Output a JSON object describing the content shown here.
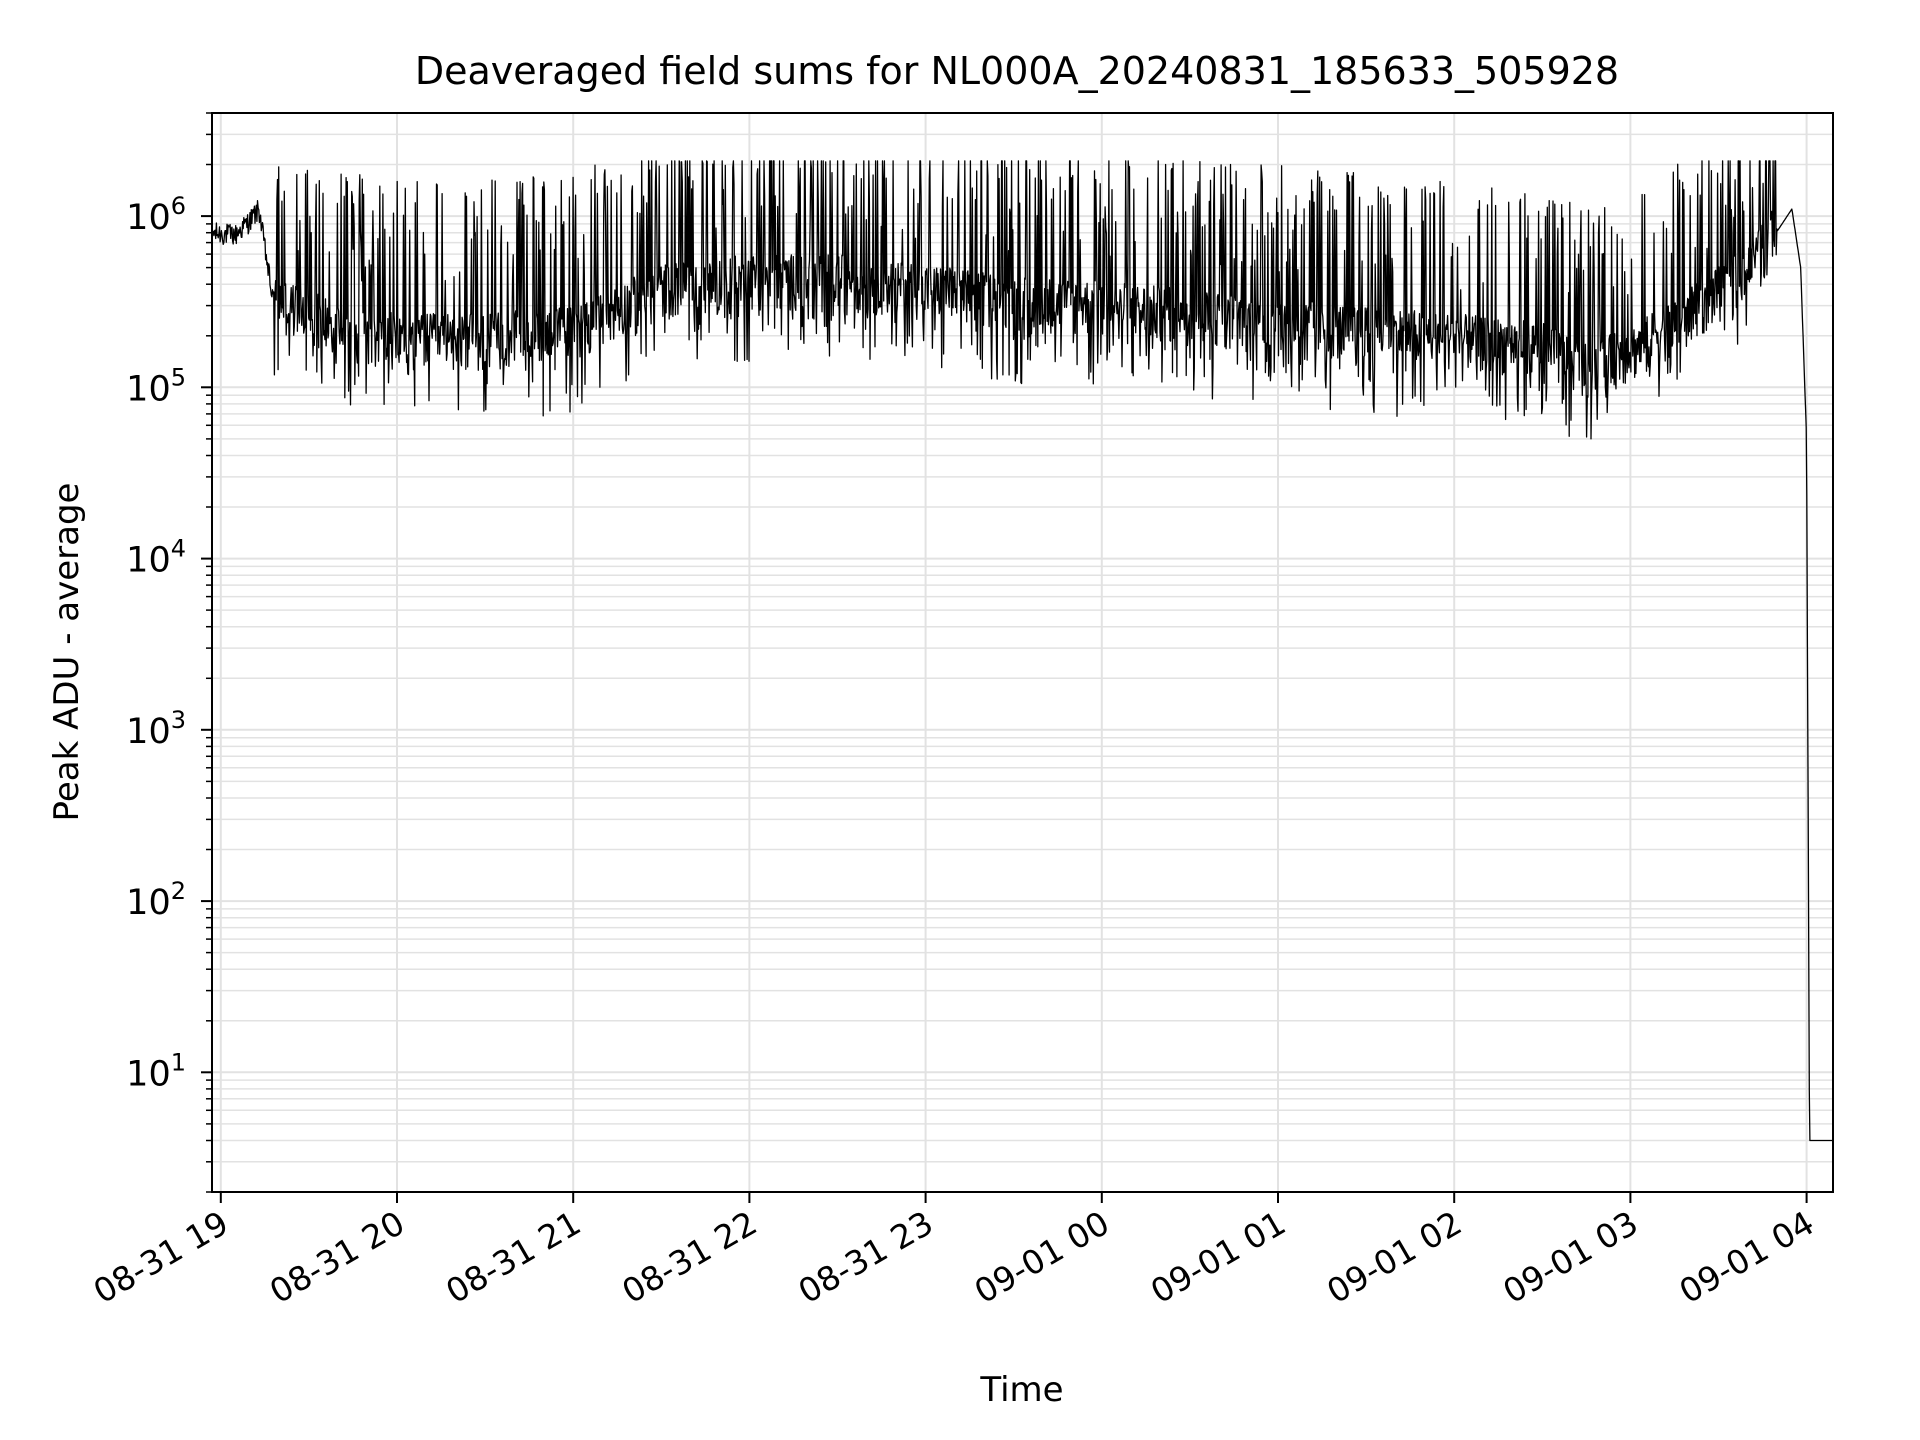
{
  "chart_data": {
    "type": "line",
    "title": "Deaveraged field sums for NL000A_20240831_185633_505928",
    "xlabel": "Time",
    "ylabel": "Peak ADU - average",
    "yscale": "log",
    "ylim": [
      2,
      4000000
    ],
    "xlim": [
      "2024-08-31 18:57",
      "2024-09-01 04:09"
    ],
    "grid": true,
    "x_ticks": [
      {
        "value": "2024-08-31 19:00",
        "label": "08-31 19"
      },
      {
        "value": "2024-08-31 20:00",
        "label": "08-31 20"
      },
      {
        "value": "2024-08-31 21:00",
        "label": "08-31 21"
      },
      {
        "value": "2024-08-31 22:00",
        "label": "08-31 22"
      },
      {
        "value": "2024-08-31 23:00",
        "label": "08-31 23"
      },
      {
        "value": "2024-09-01 00:00",
        "label": "09-01 00"
      },
      {
        "value": "2024-09-01 01:00",
        "label": "09-01 01"
      },
      {
        "value": "2024-09-01 02:00",
        "label": "09-01 02"
      },
      {
        "value": "2024-09-01 03:00",
        "label": "09-01 03"
      },
      {
        "value": "2024-09-01 04:00",
        "label": "09-01 04"
      }
    ],
    "y_ticks": [
      {
        "value": 10,
        "base": "10",
        "exp": "1"
      },
      {
        "value": 100,
        "base": "10",
        "exp": "2"
      },
      {
        "value": 1000,
        "base": "10",
        "exp": "3"
      },
      {
        "value": 10000,
        "base": "10",
        "exp": "4"
      },
      {
        "value": 100000,
        "base": "10",
        "exp": "5"
      },
      {
        "value": 1000000,
        "base": "10",
        "exp": "6"
      }
    ],
    "series": [
      {
        "color": "#000000",
        "description_points": [
          {
            "x": "2024-08-31 18:57",
            "y": 800000
          },
          {
            "x": "2024-08-31 19:05",
            "y": 780000
          },
          {
            "x": "2024-08-31 19:10",
            "y": 950000
          },
          {
            "x": "2024-08-31 19:13",
            "y": 1100000
          },
          {
            "x": "2024-08-31 19:18",
            "y": 300000
          },
          {
            "x": "2024-08-31 19:30",
            "y": 250000
          },
          {
            "x": "2024-08-31 19:45",
            "y": 200000
          },
          {
            "x": "2024-08-31 20:00",
            "y": 180000
          },
          {
            "x": "2024-08-31 20:30",
            "y": 180000
          },
          {
            "x": "2024-08-31 21:00",
            "y": 200000
          },
          {
            "x": "2024-08-31 21:30",
            "y": 350000
          },
          {
            "x": "2024-08-31 22:00",
            "y": 400000
          },
          {
            "x": "2024-08-31 22:30",
            "y": 400000
          },
          {
            "x": "2024-08-31 23:00",
            "y": 350000
          },
          {
            "x": "2024-08-31 23:30",
            "y": 300000
          },
          {
            "x": "2024-09-01 00:00",
            "y": 280000
          },
          {
            "x": "2024-09-01 00:30",
            "y": 250000
          },
          {
            "x": "2024-09-01 01:00",
            "y": 220000
          },
          {
            "x": "2024-09-01 01:30",
            "y": 200000
          },
          {
            "x": "2024-09-01 02:00",
            "y": 180000
          },
          {
            "x": "2024-09-01 02:30",
            "y": 160000
          },
          {
            "x": "2024-09-01 02:45",
            "y": 120000
          },
          {
            "x": "2024-09-01 03:00",
            "y": 150000
          },
          {
            "x": "2024-09-01 03:20",
            "y": 250000
          },
          {
            "x": "2024-09-01 03:40",
            "y": 450000
          },
          {
            "x": "2024-09-01 03:55",
            "y": 1100000
          },
          {
            "x": "2024-09-01 03:58",
            "y": 500000
          },
          {
            "x": "2024-09-01 04:00",
            "y": 50000
          },
          {
            "x": "2024-09-01 04:01",
            "y": 4
          },
          {
            "x": "2024-09-01 04:09",
            "y": 4
          }
        ],
        "spike_range": {
          "min": 50000,
          "max": 2100000
        }
      }
    ]
  }
}
